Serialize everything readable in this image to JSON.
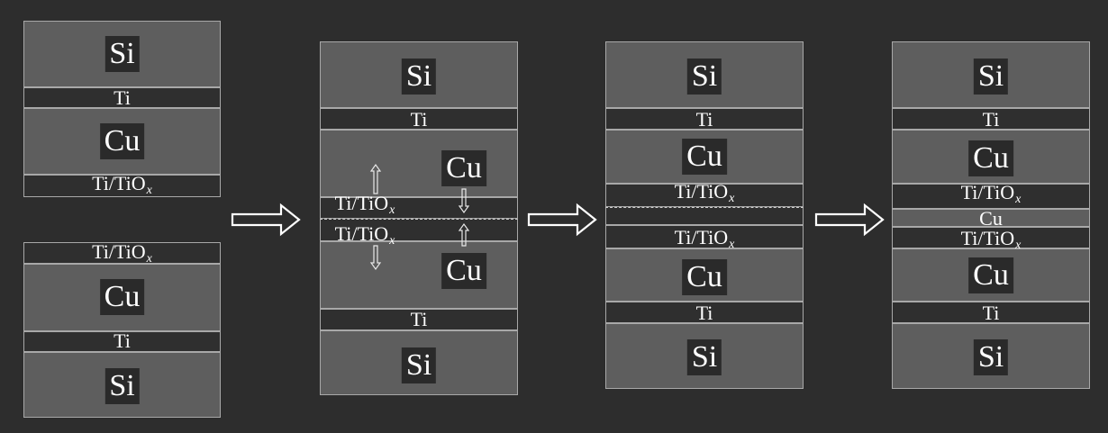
{
  "labels": {
    "si": "Si",
    "cu": "Cu",
    "ti": "Ti",
    "tiox": "Ti/TiO",
    "x_sub": "x"
  },
  "stages": [
    "Initial: two Si/Ti/Cu/Ti-TiOx stacks facing each other",
    "Stacks brought into contact with TiOx layers and Cu diffusion arrows",
    "Bonded interface with TiOx layers merged",
    "Cu layer formed between TiOx layers"
  ],
  "colors": {
    "background": "#2d2d2d",
    "thick_layer": "#5e5e5e",
    "thin_layer": "#2f2f2f",
    "border": "#a8a8a8",
    "text": "#ffffff"
  },
  "icons": {
    "process_arrow": "hollow-right-arrow",
    "diffusion_arrow": "hollow-vertical-arrow"
  }
}
